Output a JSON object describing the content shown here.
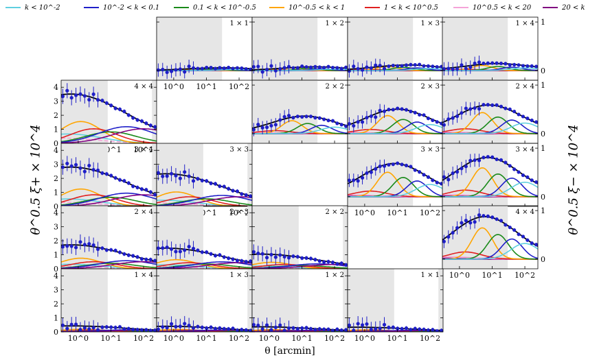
{
  "chart_data": {
    "type": "line",
    "title": "",
    "xlabel": "θ [arcmin]",
    "ylabel_left": "θ^0.5 ξ+ × 10^4",
    "ylabel_right": "θ^0.5 ξ− × 10^4",
    "x_scale": "log",
    "xlim": [
      0.3,
      250
    ],
    "xticks": [
      "10^0",
      "10^1",
      "10^2"
    ],
    "ylim_plus": [
      0,
      4.5
    ],
    "yticks_plus": [
      "0",
      "1",
      "2",
      "3",
      "4"
    ],
    "ylim_minus": [
      -0.2,
      1.1
    ],
    "yticks_minus": [
      "0",
      "1"
    ],
    "legend": [
      {
        "label": "k < 10^-2",
        "color": "#5fcfe0"
      },
      {
        "label": "10^-2 < k < 0.1",
        "color": "#1f1fc8"
      },
      {
        "label": "0.1 < k < 10^-0.5",
        "color": "#1a8a1a"
      },
      {
        "label": "10^-0.5 < k < 1",
        "color": "#ffa500"
      },
      {
        "label": "1 < k < 10^0.5",
        "color": "#e02020"
      },
      {
        "label": "10^0.5 < k < 20",
        "color": "#f5a3d8"
      },
      {
        "label": "20 < k",
        "color": "#800080"
      }
    ],
    "panels": [
      {
        "label": "1 × 1",
        "stat": "minus",
        "amp": 0.06,
        "peak": 30
      },
      {
        "label": "1 × 2",
        "stat": "minus",
        "amp": 0.08,
        "peak": 25
      },
      {
        "label": "1 × 3",
        "stat": "minus",
        "amp": 0.12,
        "peak": 20
      },
      {
        "label": "1 × 4",
        "stat": "minus",
        "amp": 0.15,
        "peak": 15
      },
      {
        "label": "4 × 4",
        "stat": "plus",
        "amp": 3.7,
        "peak": 0.6
      },
      {
        "label": "2 × 2",
        "stat": "minus",
        "amp": 0.38,
        "peak": 12
      },
      {
        "label": "2 × 3",
        "stat": "minus",
        "amp": 0.53,
        "peak": 10
      },
      {
        "label": "2 × 4",
        "stat": "minus",
        "amp": 0.62,
        "peak": 8
      },
      {
        "label": "3 × 4",
        "stat": "plus",
        "amp": 2.95,
        "peak": 0.6
      },
      {
        "label": "3 × 3",
        "stat": "plus",
        "amp": 2.45,
        "peak": 0.6
      },
      {
        "label": "3 × 3",
        "stat": "minus",
        "amp": 0.72,
        "peak": 8
      },
      {
        "label": "3 × 4",
        "stat": "minus",
        "amp": 0.85,
        "peak": 7
      },
      {
        "label": "2 × 4",
        "stat": "plus",
        "amp": 1.8,
        "peak": 0.6
      },
      {
        "label": "2 × 3",
        "stat": "plus",
        "amp": 1.55,
        "peak": 0.6
      },
      {
        "label": "2 × 2",
        "stat": "plus",
        "amp": 1.1,
        "peak": 0.6
      },
      {
        "label": "4 × 4",
        "stat": "minus",
        "amp": 0.92,
        "peak": 6
      },
      {
        "label": "1 × 4",
        "stat": "plus",
        "amp": 0.45,
        "peak": 0.6
      },
      {
        "label": "1 × 3",
        "stat": "plus",
        "amp": 0.42,
        "peak": 0.6
      },
      {
        "label": "1 × 2",
        "stat": "plus",
        "amp": 0.38,
        "peak": 0.6
      },
      {
        "label": "1 × 1",
        "stat": "plus",
        "amp": 0.35,
        "peak": 0.6
      }
    ]
  }
}
